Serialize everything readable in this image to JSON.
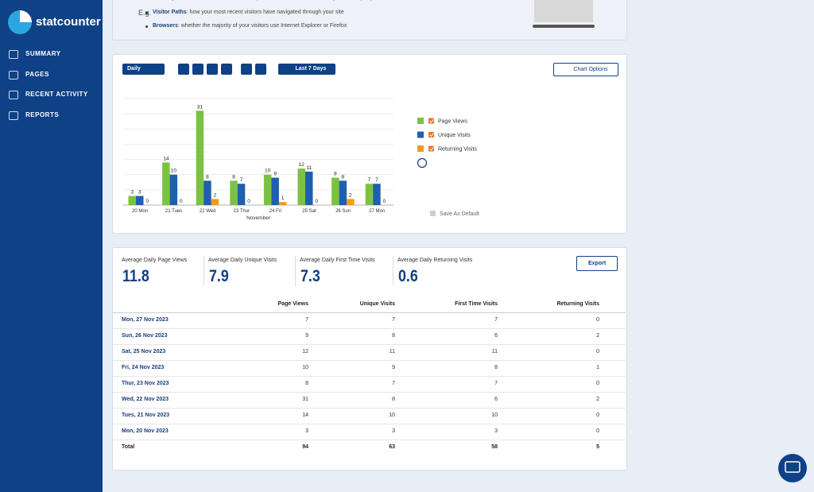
{
  "sidebar": {
    "logo": "statcounter",
    "nav": [
      "SUMMARY",
      "PAGES",
      "RECENT ACTIVITY",
      "REPORTS"
    ]
  },
  "intro": {
    "text": "Browse through the menu items on the left to explore how Statcounter enables you to analyse your data.",
    "eg": "E.g.",
    "bullets": [
      {
        "label": "Visitor Paths",
        "text": ": how your most recent visitors have navigated through your site"
      },
      {
        "label": "Browsers",
        "text": ": whether the majority of your visitors use Internet Explorer or Firefox"
      }
    ]
  },
  "controls": {
    "period": "Daily",
    "range": "Last 7 Days",
    "chart_options": "Chart Options",
    "save_default": "Save As Default"
  },
  "chart_data": {
    "type": "bar",
    "categories": [
      "20 Mon",
      "21 Tues",
      "22 Wed",
      "23 Thur",
      "24 Fri",
      "25 Sat",
      "26 Sun",
      "27 Mon"
    ],
    "xlabel": "November",
    "ylim": [
      0,
      35
    ],
    "series": [
      {
        "name": "Page Views",
        "color": "#7cc242",
        "values": [
          3,
          14,
          31,
          8,
          10,
          12,
          9,
          7
        ]
      },
      {
        "name": "Unique Visits",
        "color": "#1f5fb0",
        "values": [
          3,
          10,
          8,
          7,
          9,
          11,
          8,
          7
        ]
      },
      {
        "name": "Returning Visits",
        "color": "#f39a1e",
        "values": [
          0,
          0,
          2,
          0,
          1,
          0,
          2,
          0
        ]
      }
    ]
  },
  "stats": [
    {
      "label": "Average Daily Page Views",
      "value": 11.8
    },
    {
      "label": "Average Daily Unique Visits",
      "value": 7.9
    },
    {
      "label": "Average Daily First Time Visits",
      "value": 7.3
    },
    {
      "label": "Average Daily Returning Visits",
      "value": 0.6
    }
  ],
  "export": "Export",
  "table": {
    "columns": [
      "Page Views",
      "Unique Visits",
      "First Time Visits",
      "Returning Visits"
    ],
    "rows": [
      {
        "date": "Mon, 27 Nov 2023",
        "values": [
          7,
          7,
          7,
          0
        ]
      },
      {
        "date": "Sun, 26 Nov 2023",
        "values": [
          9,
          8,
          6,
          2
        ]
      },
      {
        "date": "Sat, 25 Nov 2023",
        "values": [
          12,
          11,
          11,
          0
        ]
      },
      {
        "date": "Fri, 24 Nov 2023",
        "values": [
          10,
          9,
          8,
          1
        ]
      },
      {
        "date": "Thur, 23 Nov 2023",
        "values": [
          8,
          7,
          7,
          0
        ]
      },
      {
        "date": "Wed, 22 Nov 2023",
        "values": [
          31,
          8,
          6,
          2
        ]
      },
      {
        "date": "Tues, 21 Nov 2023",
        "values": [
          14,
          10,
          10,
          0
        ]
      },
      {
        "date": "Mon, 20 Nov 2023",
        "values": [
          3,
          3,
          3,
          0
        ]
      }
    ],
    "total": {
      "label": "Total",
      "values": [
        94,
        63,
        58,
        5
      ]
    }
  }
}
